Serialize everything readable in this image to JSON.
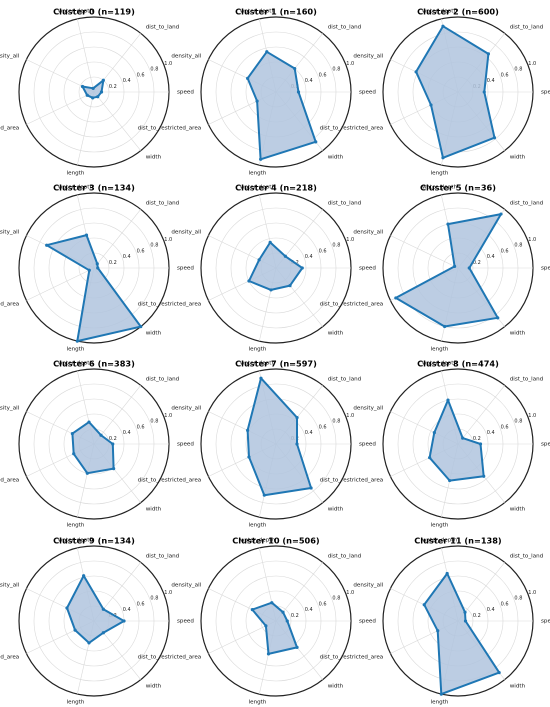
{
  "chart_data": {
    "type": "radar",
    "axes": [
      "speed",
      "dist_to_land",
      "water_depth",
      "density_all",
      "dist_to_restricted_area",
      "length",
      "width"
    ],
    "radial_ticks": [
      "0.2",
      "0.4",
      "0.6",
      "0.8",
      "1.0"
    ],
    "rlim": [
      0,
      1
    ],
    "grid": true,
    "colors": {
      "line": "#1f77b4",
      "fill": "#b0c4de"
    },
    "charts": [
      {
        "title": "Cluster 0 (n=119)",
        "values": [
          0.1,
          0.2,
          0.05,
          0.17,
          0.1,
          0.08,
          0.08
        ]
      },
      {
        "title": "Cluster 1 (n=160)",
        "values": [
          0.3,
          0.4,
          0.55,
          0.42,
          0.28,
          0.92,
          0.85
        ]
      },
      {
        "title": "Cluster 2 (n=600)",
        "values": [
          0.35,
          0.65,
          0.9,
          0.62,
          0.4,
          0.9,
          0.78
        ]
      },
      {
        "title": "Cluster 3 (n=134)",
        "values": [
          0.05,
          0.07,
          0.45,
          0.7,
          0.07,
          1.0,
          1.0
        ]
      },
      {
        "title": "Cluster 4 (n=218)",
        "values": [
          0.35,
          0.2,
          0.35,
          0.25,
          0.4,
          0.3,
          0.3
        ]
      },
      {
        "title": "Cluster 5 (n=36)",
        "values": [
          0.15,
          0.92,
          0.6,
          0.05,
          0.92,
          0.8,
          0.85
        ]
      },
      {
        "title": "Cluster 6 (n=383)",
        "values": [
          0.25,
          0.15,
          0.3,
          0.32,
          0.3,
          0.4,
          0.42
        ]
      },
      {
        "title": "Cluster 7 (n=597)",
        "values": [
          0.28,
          0.45,
          0.9,
          0.42,
          0.4,
          0.7,
          0.75
        ]
      },
      {
        "title": "Cluster 8 (n=474)",
        "values": [
          0.3,
          0.1,
          0.6,
          0.35,
          0.42,
          0.5,
          0.55
        ]
      },
      {
        "title": "Cluster 9 (n=134)",
        "values": [
          0.4,
          0.2,
          0.62,
          0.4,
          0.28,
          0.3,
          0.2
        ]
      },
      {
        "title": "Cluster 10 (n=506)",
        "values": [
          0.15,
          0.15,
          0.25,
          0.35,
          0.15,
          0.45,
          0.45
        ]
      },
      {
        "title": "Cluster 11 (n=138)",
        "values": [
          0.1,
          0.15,
          0.65,
          0.5,
          0.3,
          1.0,
          0.88
        ]
      }
    ]
  }
}
